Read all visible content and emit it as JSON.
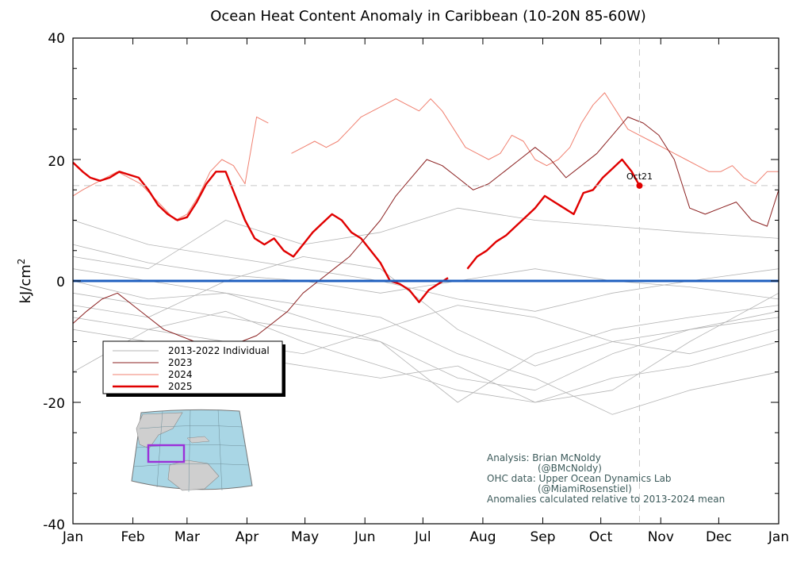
{
  "chart_data": {
    "type": "line",
    "title": "Ocean Heat Content Anomaly in Caribbean (10-20N 85-60W)",
    "ylabel": "kJ/cm",
    "ylabel_sup": "2",
    "xlabel": "",
    "ylim": [
      -40,
      40
    ],
    "yticks": [
      "40",
      "20",
      "0",
      "-20",
      "-40"
    ],
    "xlim": [
      1,
      366
    ],
    "months": [
      "Jan",
      "Feb",
      "Mar",
      "Apr",
      "May",
      "Jun",
      "Jul",
      "Aug",
      "Sep",
      "Oct",
      "Nov",
      "Dec",
      "Jan"
    ],
    "zero_line_color": "#1f5fbf",
    "current_marker": {
      "label": "Oct21",
      "day": 294,
      "value": 15.7
    },
    "legend": {
      "placement": "middle-left",
      "entries": [
        {
          "label": "2013-2022 Individual",
          "color": "#b4b4b4"
        },
        {
          "label": "2023",
          "color": "#8b2020"
        },
        {
          "label": "2024",
          "color": "#f08070"
        },
        {
          "label": "2025",
          "color": "#e00000"
        }
      ]
    },
    "series": [
      {
        "name": "2025",
        "color": "#e00000",
        "width": 2.4,
        "x": [
          1,
          6,
          10,
          15,
          20,
          25,
          30,
          35,
          40,
          45,
          50,
          55,
          60,
          65,
          70,
          75,
          80,
          85,
          90,
          95,
          100,
          105,
          110,
          115,
          120,
          125,
          130,
          135,
          140,
          145,
          150,
          155,
          160,
          165,
          170,
          175,
          180,
          185,
          190,
          195,
          200,
          205,
          210,
          215,
          220,
          225,
          230,
          235,
          240,
          245,
          250,
          255,
          260,
          265,
          270,
          275,
          280,
          285,
          290,
          294
        ],
        "y": [
          19.5,
          18,
          17,
          16.5,
          17,
          18,
          17.5,
          17,
          15,
          12.5,
          11,
          10,
          10.5,
          13,
          16,
          18,
          18,
          14,
          10,
          7,
          6,
          7,
          5,
          4,
          6,
          8,
          9.5,
          11,
          10,
          8,
          7,
          5,
          3,
          0,
          -0.5,
          -1.5,
          -3.5,
          -1.5,
          -0.5,
          0.5,
          null,
          2,
          4,
          5,
          6.5,
          7.5,
          9,
          10.5,
          12,
          14,
          13,
          12,
          11,
          14.5,
          15,
          17,
          18.5,
          20,
          18,
          15.7
        ]
      },
      {
        "name": "2024",
        "color": "#f08070",
        "width": 1.0,
        "x": [
          1,
          6,
          12,
          18,
          24,
          30,
          36,
          42,
          48,
          54,
          60,
          66,
          72,
          78,
          84,
          90,
          96,
          102,
          108,
          114,
          120,
          126,
          132,
          138,
          144,
          150,
          156,
          162,
          168,
          174,
          180,
          186,
          192,
          198,
          204,
          210,
          216,
          222,
          228,
          234,
          240,
          246,
          252,
          258,
          264,
          270,
          276,
          282,
          288,
          294,
          300,
          306,
          312,
          318,
          324,
          330,
          336,
          342,
          348,
          354,
          360,
          366
        ],
        "y": [
          14,
          15,
          16,
          17,
          18,
          17,
          16,
          14,
          12,
          10,
          11,
          14,
          18,
          20,
          19,
          16,
          27,
          26,
          null,
          21,
          22,
          23,
          22,
          23,
          25,
          27,
          28,
          29,
          30,
          29,
          28,
          30,
          28,
          25,
          22,
          21,
          20,
          21,
          24,
          23,
          20,
          19,
          20,
          22,
          26,
          29,
          31,
          28,
          25,
          24,
          23,
          22,
          21,
          20,
          19,
          18,
          18,
          19,
          17,
          16,
          18,
          18
        ]
      },
      {
        "name": "2023",
        "color": "#8b2020",
        "width": 1.0,
        "x": [
          1,
          8,
          16,
          24,
          32,
          40,
          48,
          56,
          64,
          72,
          80,
          88,
          96,
          104,
          112,
          120,
          128,
          136,
          144,
          152,
          160,
          168,
          176,
          184,
          192,
          200,
          208,
          216,
          224,
          232,
          240,
          248,
          256,
          264,
          272,
          280,
          288,
          296,
          304,
          312,
          320,
          328,
          336,
          344,
          352,
          360,
          366
        ],
        "y": [
          -7,
          -5,
          -3,
          -2,
          -4,
          -6,
          -8,
          -9,
          -10,
          -12,
          -11,
          -10,
          -9,
          -7,
          -5,
          -2,
          0,
          2,
          4,
          7,
          10,
          14,
          17,
          20,
          19,
          17,
          15,
          16,
          18,
          20,
          22,
          20,
          17,
          19,
          21,
          24,
          27,
          26,
          24,
          20,
          12,
          11,
          12,
          13,
          10,
          9,
          15
        ]
      },
      {
        "name": "2013-2022 a",
        "color": "#b4b4b4",
        "width": 0.8,
        "x": [
          1,
          40,
          80,
          120,
          160,
          200,
          240,
          280,
          320,
          366
        ],
        "y": [
          -15,
          -8,
          -5,
          -10,
          -14,
          -18,
          -20,
          -16,
          -14,
          -10
        ]
      },
      {
        "name": "2013-2022 b",
        "color": "#b4b4b4",
        "width": 0.8,
        "x": [
          1,
          40,
          80,
          120,
          160,
          200,
          240,
          280,
          320,
          366
        ],
        "y": [
          10,
          6,
          4,
          2,
          0,
          -3,
          -5,
          -2,
          0,
          2
        ]
      },
      {
        "name": "2013-2022 c",
        "color": "#b4b4b4",
        "width": 0.8,
        "x": [
          1,
          40,
          80,
          120,
          160,
          200,
          240,
          280,
          320,
          366
        ],
        "y": [
          -2,
          -4,
          -6,
          -8,
          -10,
          -20,
          -12,
          -8,
          -6,
          -4
        ]
      },
      {
        "name": "2013-2022 d",
        "color": "#b4b4b4",
        "width": 0.8,
        "x": [
          1,
          40,
          80,
          120,
          160,
          200,
          240,
          280,
          320,
          366
        ],
        "y": [
          4,
          2,
          10,
          6,
          8,
          12,
          10,
          9,
          8,
          7
        ]
      },
      {
        "name": "2013-2022 e",
        "color": "#b4b4b4",
        "width": 0.8,
        "x": [
          1,
          40,
          80,
          120,
          160,
          200,
          240,
          280,
          320,
          366
        ],
        "y": [
          0,
          -3,
          -2,
          -4,
          -6,
          -12,
          -16,
          -22,
          -18,
          -15
        ]
      },
      {
        "name": "2013-2022 f",
        "color": "#b4b4b4",
        "width": 0.8,
        "x": [
          1,
          40,
          80,
          120,
          160,
          200,
          240,
          280,
          320,
          366
        ],
        "y": [
          -6,
          -8,
          -10,
          -12,
          -8,
          -4,
          -6,
          -10,
          -8,
          -6
        ]
      },
      {
        "name": "2013-2022 g",
        "color": "#b4b4b4",
        "width": 0.8,
        "x": [
          1,
          40,
          80,
          120,
          160,
          200,
          240,
          280,
          320,
          366
        ],
        "y": [
          6,
          3,
          1,
          0,
          -2,
          0,
          2,
          0,
          -1,
          -3
        ]
      },
      {
        "name": "2013-2022 h",
        "color": "#b4b4b4",
        "width": 0.8,
        "x": [
          1,
          40,
          80,
          120,
          160,
          200,
          240,
          280,
          320,
          366
        ],
        "y": [
          -4,
          -6,
          0,
          4,
          2,
          -8,
          -14,
          -10,
          -12,
          -8
        ]
      },
      {
        "name": "2013-2022 i",
        "color": "#b4b4b4",
        "width": 0.8,
        "x": [
          1,
          40,
          80,
          120,
          160,
          200,
          240,
          280,
          320,
          366
        ],
        "y": [
          2,
          0,
          -2,
          -6,
          -10,
          -16,
          -18,
          -12,
          -8,
          -5
        ]
      },
      {
        "name": "2013-2022 j",
        "color": "#b4b4b4",
        "width": 0.8,
        "x": [
          1,
          40,
          80,
          120,
          160,
          200,
          240,
          280,
          320,
          366
        ],
        "y": [
          -8,
          -10,
          -12,
          -14,
          -16,
          -14,
          -20,
          -18,
          -10,
          -2
        ]
      }
    ]
  },
  "credits": [
    "Analysis: Brian McNoldy",
    "(@BMcNoldy)",
    "OHC data: Upper Ocean Dynamics Lab",
    "(@MiamiRosenstiel)",
    "Anomalies calculated relative to 2013-2024 mean"
  ]
}
